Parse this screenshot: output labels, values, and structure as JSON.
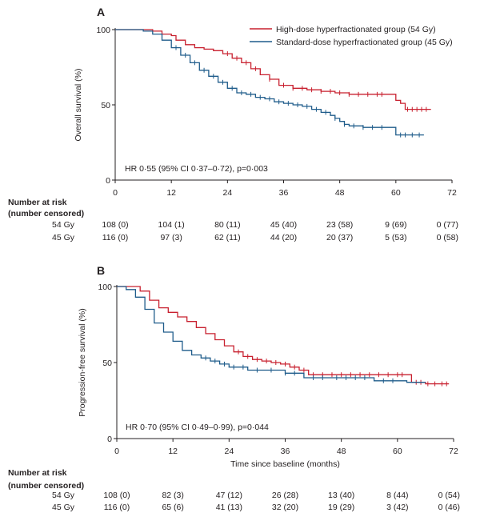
{
  "chart_data": [
    {
      "panel": "A",
      "type": "line",
      "ylabel": "Overall survival (%)",
      "xlabel": "",
      "annotation": "HR 0·55 (95% CI 0·37–0·72), p=0·003",
      "xlim": [
        0,
        72
      ],
      "ylim": [
        0,
        100
      ],
      "x_ticks": [
        "0",
        "12",
        "24",
        "36",
        "48",
        "60",
        "72"
      ],
      "y_ticks": [
        "0",
        "50",
        "100"
      ],
      "legend_position": "top-right",
      "series": [
        {
          "name": "High-dose hyperfractionated group (54 Gy)",
          "color": "#c8202f",
          "x": [
            0,
            6,
            8,
            10,
            12,
            13,
            15,
            17,
            19,
            21,
            23,
            25,
            27,
            29,
            31,
            33,
            35,
            38,
            41,
            44,
            47,
            50,
            53,
            56,
            58,
            60,
            61,
            62,
            64,
            66,
            67.5
          ],
          "y": [
            100,
            100,
            99,
            97,
            96,
            93,
            90,
            88,
            87,
            86,
            84,
            81,
            78,
            74,
            70,
            67,
            63,
            61,
            60,
            59,
            58,
            57,
            57,
            57,
            57,
            53,
            51,
            47,
            47,
            47,
            47
          ],
          "censor_x": [
            24,
            26,
            28,
            30,
            33,
            36,
            38,
            40,
            42,
            44,
            46,
            48,
            50,
            52,
            54,
            56,
            57,
            62.5,
            63.5,
            64.5,
            65.5,
            66.5
          ]
        },
        {
          "name": "Standard-dose hyperfractionated group (45 Gy)",
          "color": "#1f5c8b",
          "x": [
            0,
            6,
            8,
            10,
            12,
            14,
            16,
            18,
            20,
            22,
            24,
            26,
            28,
            30,
            32,
            34,
            36,
            38,
            40,
            42,
            44,
            46,
            47,
            48,
            49,
            50,
            53,
            56,
            59,
            60,
            63,
            66
          ],
          "y": [
            100,
            99,
            97,
            93,
            88,
            83,
            78,
            73,
            69,
            65,
            61,
            58,
            57,
            55,
            54,
            52,
            51,
            50,
            49,
            47,
            45,
            43,
            41,
            39,
            37,
            36,
            35,
            35,
            35,
            30,
            30,
            30
          ],
          "censor_x": [
            13,
            15,
            17,
            19,
            21,
            23,
            25,
            27,
            29,
            31,
            33,
            35,
            37,
            39,
            41,
            43,
            45,
            47,
            49,
            51,
            53,
            55,
            57,
            61,
            62,
            63.5,
            65
          ]
        }
      ],
      "risk_table": {
        "header": [
          "Number at risk",
          "(number censored)"
        ],
        "times": [
          0,
          12,
          24,
          36,
          48,
          60,
          72
        ],
        "rows": [
          {
            "label": "54 Gy",
            "cells": [
              "108 (0)",
              "104 (1)",
              "80 (11)",
              "45 (40)",
              "23 (58)",
              "9 (69)",
              "0 (77)"
            ]
          },
          {
            "label": "45 Gy",
            "cells": [
              "116 (0)",
              "97 (3)",
              "62 (11)",
              "44 (20)",
              "20 (37)",
              "5 (53)",
              "0 (58)"
            ]
          }
        ]
      }
    },
    {
      "panel": "B",
      "type": "line",
      "ylabel": "Progression-free survival (%)",
      "xlabel": "Time since baseline (months)",
      "annotation": "HR 0·70 (95% CI 0·49–0·99), p=0·044",
      "xlim": [
        0,
        72
      ],
      "ylim": [
        0,
        100
      ],
      "x_ticks": [
        "0",
        "12",
        "24",
        "36",
        "48",
        "60",
        "72"
      ],
      "y_ticks": [
        "0",
        "50",
        "100"
      ],
      "series": [
        {
          "name": "54 Gy",
          "color": "#c8202f",
          "x": [
            0,
            3,
            5,
            7,
            9,
            11,
            13,
            15,
            17,
            19,
            21,
            23,
            25,
            27,
            29,
            31,
            33,
            35,
            37,
            39,
            41,
            45,
            50,
            55,
            60,
            62,
            63,
            66,
            71
          ],
          "y": [
            100,
            100,
            97,
            91,
            86,
            83,
            80,
            77,
            73,
            69,
            65,
            61,
            57,
            54,
            52,
            51,
            50,
            49,
            47,
            45,
            42,
            42,
            42,
            42,
            42,
            42,
            37,
            36,
            36
          ],
          "censor_x": [
            26,
            28,
            30,
            32,
            34,
            36,
            38,
            40,
            42,
            44,
            46,
            48,
            50,
            52,
            54,
            56,
            58,
            60,
            61,
            64,
            65,
            66.5,
            68,
            69.5,
            70.5
          ]
        },
        {
          "name": "45 Gy",
          "color": "#1f5c8b",
          "x": [
            0,
            2,
            4,
            6,
            8,
            10,
            12,
            14,
            16,
            18,
            20,
            22,
            24,
            28,
            32,
            36,
            40,
            45,
            50,
            53,
            55,
            60,
            62,
            66
          ],
          "y": [
            100,
            98,
            93,
            85,
            76,
            70,
            64,
            58,
            55,
            53,
            51,
            49,
            47,
            45,
            45,
            43,
            40,
            40,
            40,
            40,
            38,
            38,
            37,
            37
          ],
          "censor_x": [
            19,
            21,
            23,
            25,
            27,
            30,
            33,
            36,
            38,
            42,
            44,
            47,
            49,
            51,
            53,
            57,
            59
          ]
        }
      ],
      "risk_table": {
        "header": [
          "Number at risk",
          "(number censored)"
        ],
        "times": [
          0,
          12,
          24,
          36,
          48,
          60,
          72
        ],
        "rows": [
          {
            "label": "54 Gy",
            "cells": [
              "108 (0)",
              "82 (3)",
              "47 (12)",
              "26 (28)",
              "13 (40)",
              "8 (44)",
              "0 (54)"
            ]
          },
          {
            "label": "45 Gy",
            "cells": [
              "116 (0)",
              "65 (6)",
              "41 (13)",
              "32 (20)",
              "19 (29)",
              "3 (42)",
              "0 (46)"
            ]
          }
        ]
      }
    }
  ]
}
